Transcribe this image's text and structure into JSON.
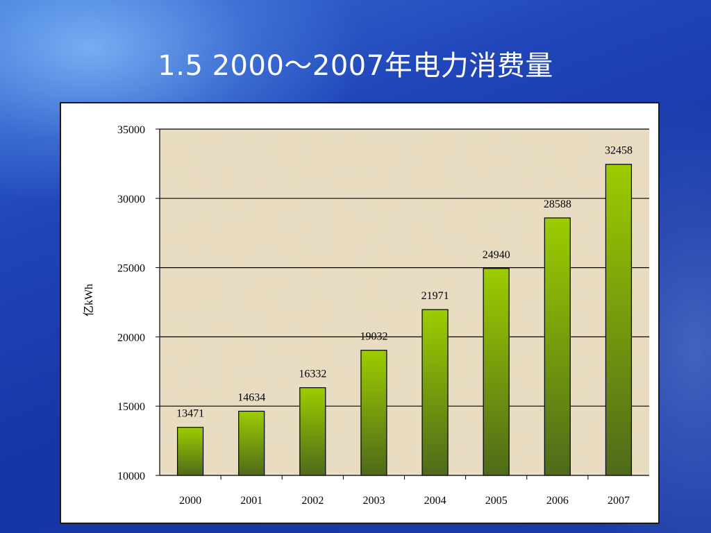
{
  "slide": {
    "title": "1.5 2000～2007年电力消费量"
  },
  "chart_data": {
    "type": "bar",
    "categories": [
      "2000",
      "2001",
      "2002",
      "2003",
      "2004",
      "2005",
      "2006",
      "2007"
    ],
    "values": [
      13471,
      14634,
      16332,
      19032,
      21971,
      24940,
      28588,
      32458
    ],
    "ylabel": "亿kWh",
    "ylim": [
      10000,
      35000
    ],
    "yticks": [
      10000,
      15000,
      20000,
      25000,
      30000,
      35000
    ],
    "grid": true,
    "legend": "none",
    "bar_color_top": "#9ccc00",
    "bar_color_bottom": "#4f6a1a",
    "plot_background": "#e9dcc0"
  }
}
